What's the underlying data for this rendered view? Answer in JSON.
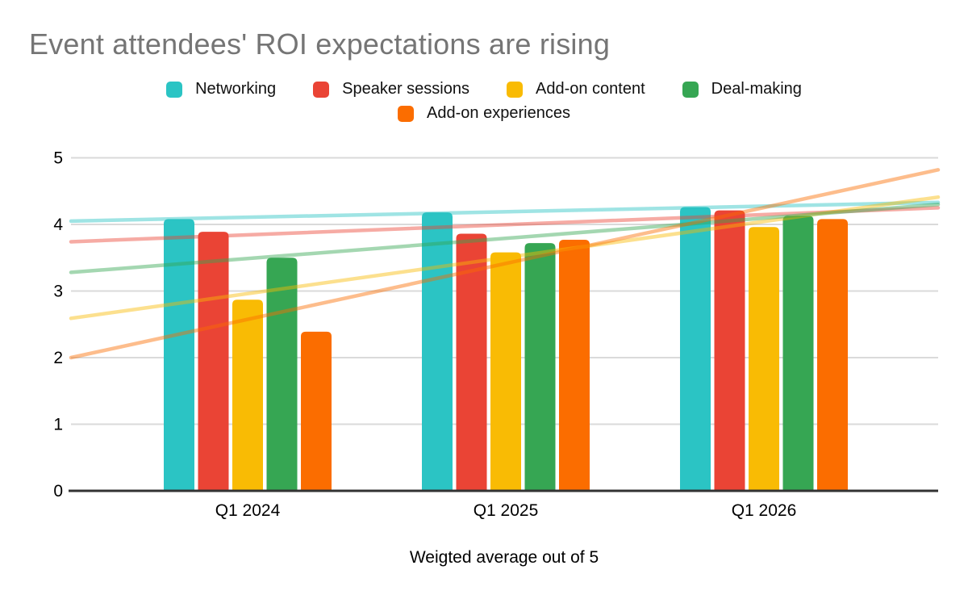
{
  "title": "Event attendees' ROI expectations are rising",
  "colors": {
    "title_text": "#757575",
    "gridline": "#DADADA",
    "axis_line": "#333333",
    "background": "#FFFFFF"
  },
  "chart_data": {
    "type": "bar",
    "subtype": "grouped-bars-with-linear-trendlines",
    "title": "Event attendees' ROI expectations are rising",
    "categories": [
      "Q1 2024",
      "Q1 2025",
      "Q1 2026"
    ],
    "series": [
      {
        "name": "Networking",
        "color": "#2BC4C4",
        "values": [
          4.08,
          4.18,
          4.26
        ],
        "trend_start": 4.05,
        "trend_end": 4.33
      },
      {
        "name": "Speaker sessions",
        "color": "#EA4435",
        "values": [
          3.89,
          3.86,
          4.21
        ],
        "trend_start": 3.74,
        "trend_end": 4.25
      },
      {
        "name": "Add-on content",
        "color": "#F9BB04",
        "values": [
          2.87,
          3.58,
          3.96
        ],
        "trend_start": 2.59,
        "trend_end": 4.41
      },
      {
        "name": "Deal-making",
        "color": "#36A653",
        "values": [
          3.5,
          3.72,
          4.13
        ],
        "trend_start": 3.28,
        "trend_end": 4.3
      },
      {
        "name": "Add-on experiences",
        "color": "#FB6D00",
        "values": [
          2.39,
          3.77,
          4.08
        ],
        "trend_start": 2.0,
        "trend_end": 4.82
      }
    ],
    "xlabel": "Weigted average out of 5",
    "ylabel": "",
    "ylim": [
      0,
      5
    ],
    "yticks": [
      0,
      1,
      2,
      3,
      4,
      5
    ],
    "grid": true,
    "legend_position": "top",
    "trendline_opacity": 0.45
  }
}
